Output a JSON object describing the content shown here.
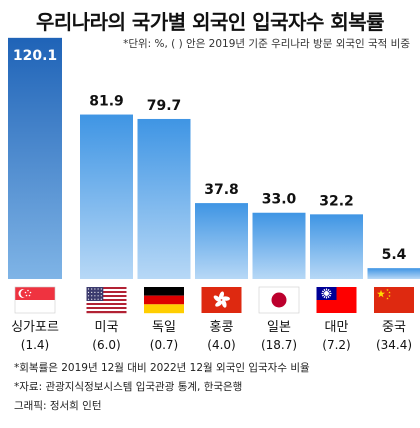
{
  "header": {
    "title": "우리나라의 국가별 외국인 입국자수 회복률",
    "subtitle": "*단위: %, ( ) 안은 2019년 기준 우리나라 방문 외국인 국적 비중"
  },
  "chart_data": {
    "type": "bar",
    "title": "우리나라의 국가별 외국인 입국자수 회복률",
    "ylim": [
      0,
      125
    ],
    "grid": false,
    "categories": [
      "싱가포르",
      "미국",
      "독일",
      "홍콩",
      "일본",
      "대만",
      "중국"
    ],
    "shares": [
      "(1.4)",
      "(6.0)",
      "(0.7)",
      "(4.0)",
      "(18.7)",
      "(7.2)",
      "(34.4)"
    ],
    "values": [
      120.1,
      81.9,
      79.7,
      37.8,
      33.0,
      32.2,
      5.4
    ],
    "value_labels": [
      "120.1",
      "81.9",
      "79.7",
      "37.8",
      "33.0",
      "32.2",
      "5.4"
    ],
    "flags": [
      "singapore-flag",
      "usa-flag",
      "germany-flag",
      "hongkong-flag",
      "japan-flag",
      "taiwan-flag",
      "china-flag"
    ],
    "colors": {
      "highlight_top": "#1f63b7",
      "highlight_bottom": "#7fb4e6",
      "bar_top": "#3f95e4",
      "bar_bottom": "#b7d8f6",
      "label_highlight": "#ffffff",
      "label_normal": "#111111"
    }
  },
  "notes": {
    "note1": "*회복률은 2019년 12월 대비 2022년 12월 외국인 입국자수 비율",
    "note2": "*자료: 관광지식정보시스템 입국관광 통계, 한국은행",
    "note3": "그래픽: 정서희 인턴"
  }
}
